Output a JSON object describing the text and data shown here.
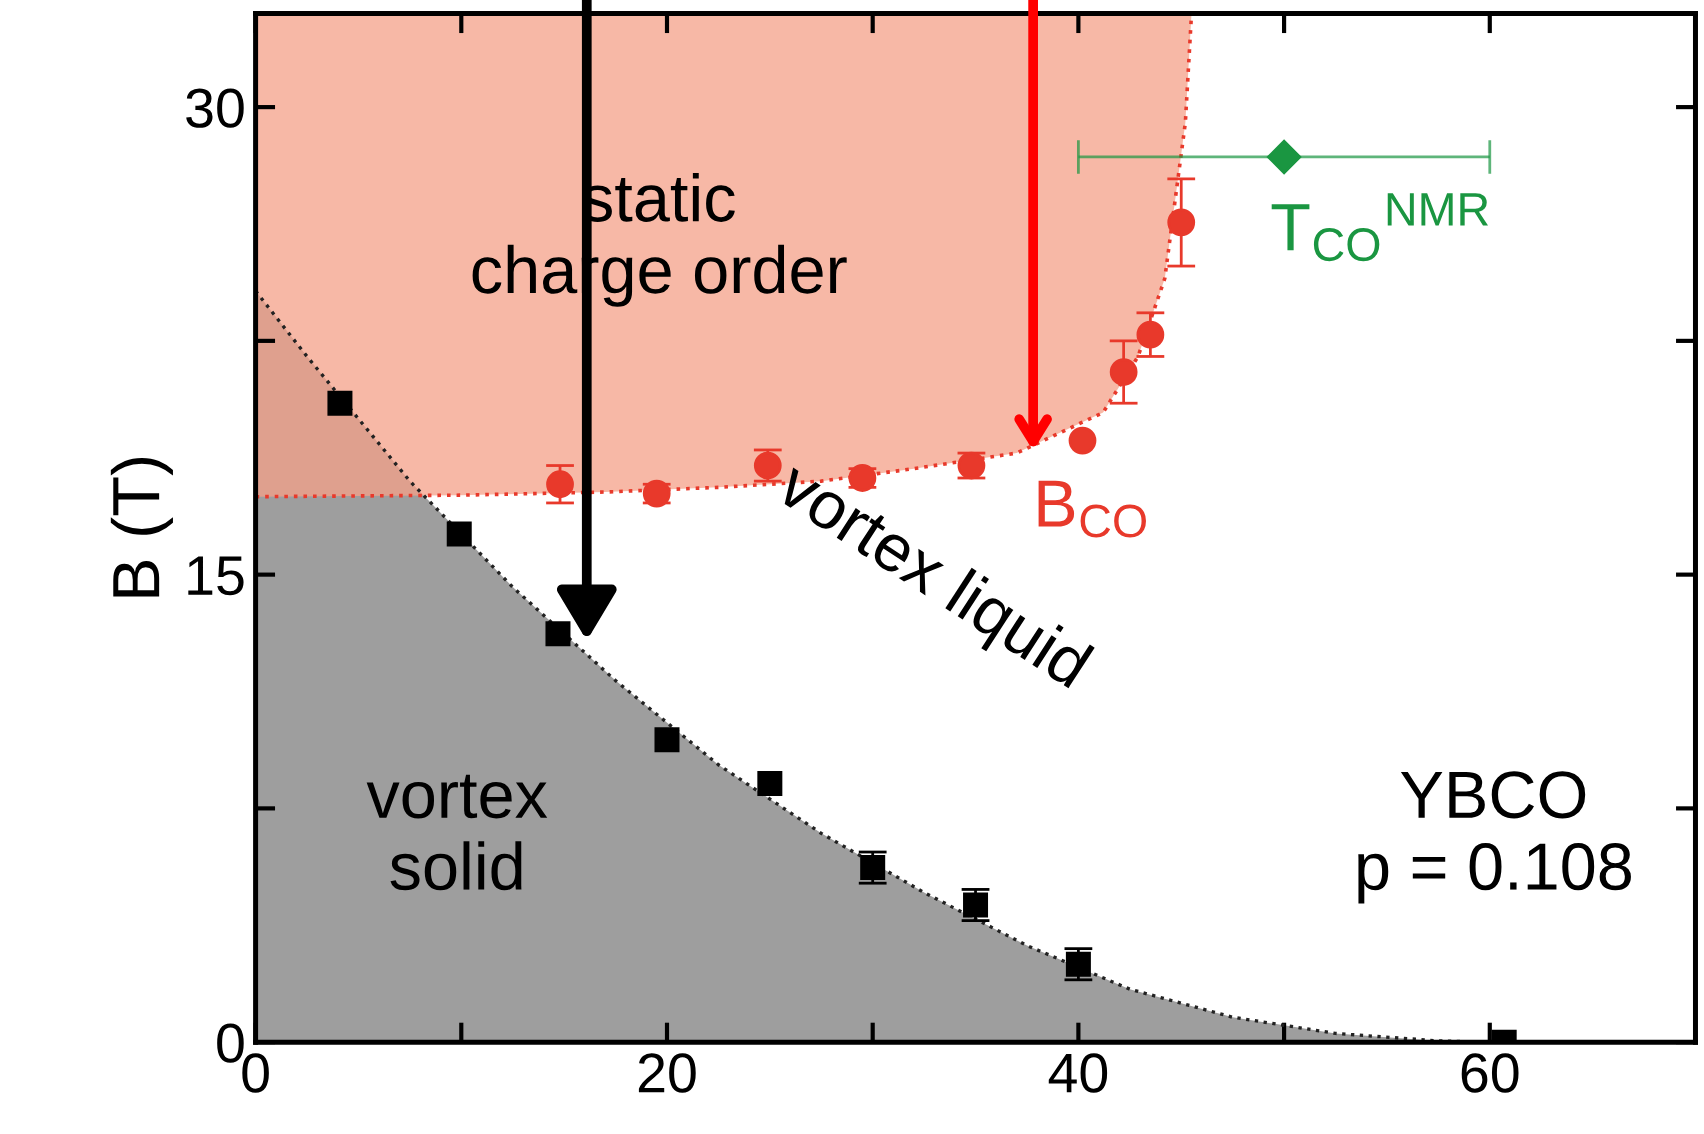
{
  "chart_data": {
    "type": "scatter",
    "ylabel": "B (T)",
    "xlim": [
      0,
      70
    ],
    "xticks": [
      0,
      {
        "value": 10,
        "label": null
      },
      20,
      {
        "value": 30,
        "label": null
      },
      40,
      {
        "value": 50,
        "label": null
      },
      60
    ],
    "ylim": [
      0,
      33
    ],
    "yticks": [
      0,
      {
        "value": 7.5,
        "label": null
      },
      15,
      {
        "value": 22.5,
        "label": null
      },
      30
    ],
    "grid": false,
    "series": [
      {
        "type": "area",
        "color": "#9e9e9e",
        "line_style": "dotted",
        "x": [
          0,
          2.5,
          7.5,
          12.5,
          17.5,
          22.5,
          27.5,
          32.5,
          37.5,
          42.5,
          47.5,
          52.5,
          57.5,
          60
        ],
        "values": [
          24.1,
          22,
          18.0,
          14.6,
          11.6,
          8.9,
          6.7,
          4.8,
          3.1,
          1.7,
          0.8,
          0.28,
          0.04,
          0
        ]
      },
      {
        "type": "line",
        "color": "#e8392b",
        "line_style": "dotted",
        "x": [
          0,
          10,
          17,
          22.5,
          27.5,
          32,
          37,
          41.2,
          42.9,
          44.2,
          45.2,
          45.5
        ],
        "values": [
          17.5,
          17.55,
          17.65,
          17.8,
          18.0,
          18.4,
          18.9,
          20.2,
          22.0,
          24.5,
          29.5,
          33
        ]
      },
      {
        "color": "#000000",
        "marker": "square",
        "x": [
          4.1,
          9.9,
          14.7,
          20,
          25,
          30,
          35,
          40,
          60.7
        ],
        "values": [
          20.5,
          16.3,
          13.1,
          9.7,
          8.3,
          5.6,
          4.4,
          2.5,
          0
        ],
        "errors": [
          null,
          null,
          null,
          null,
          null,
          0.5,
          0.5,
          0.5,
          null
        ]
      },
      {
        "color": "#e8392b",
        "marker": "circle",
        "x": [
          14.8,
          19.5,
          24.9,
          29.5,
          34.8,
          40.2,
          42.2,
          43.5,
          45
        ],
        "values": [
          17.9,
          17.6,
          18.5,
          18.1,
          18.5,
          19.3,
          21.5,
          22.7,
          26.3
        ],
        "errors": [
          0.6,
          0.3,
          0.5,
          0.3,
          0.4,
          null,
          1.0,
          0.7,
          1.4
        ]
      },
      {
        "name": "T$_{CO}$$^{NMR}$",
        "color": "#1a9641",
        "marker": "diamond",
        "x": [
          50
        ],
        "values": [
          28.4
        ],
        "xerrors": [
          [
            40,
            60
          ]
        ]
      }
    ],
    "annotations": [
      "static\ncharge order",
      "vortex liquid",
      "vortex\nsolid",
      "YBCO\np = 0.108",
      {
        "text": "B$_{CO}$",
        "x": 37.8,
        "y": 18.8
      }
    ]
  }
}
